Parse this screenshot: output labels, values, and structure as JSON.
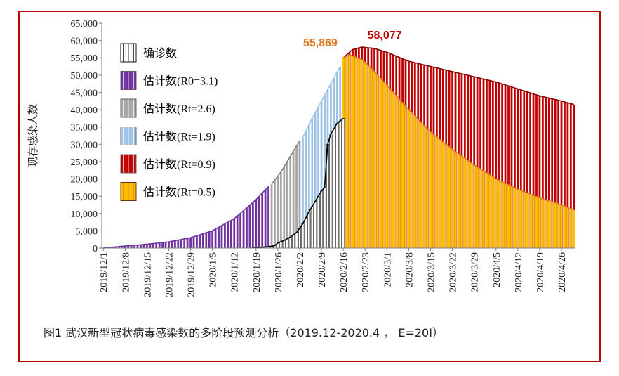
{
  "figure": {
    "caption": "图1  武汉新型冠状病毒感染数的多阶段预测分析（2019.12-2020.4 ，  E=20I）"
  },
  "chart_data": {
    "type": "bar",
    "ylabel": "现存感染人数",
    "ylim": [
      0,
      65000
    ],
    "y_ticks": [
      "0",
      "5,000",
      "10,000",
      "15,000",
      "20,000",
      "25,000",
      "30,000",
      "35,000",
      "40,000",
      "45,000",
      "50,000",
      "55,000",
      "60,000",
      "65,000"
    ],
    "x_start": "2019-12-01",
    "x_end": "2020-04-30",
    "x_tick_labels": [
      "2019/12/1",
      "2019/12/8",
      "2019/12/15",
      "2019/12/22",
      "2019/12/29",
      "2020/1/5",
      "2020/1/12",
      "2020/1/19",
      "2020/1/26",
      "2020/2/2",
      "2020/2/9",
      "2020/2/16",
      "2020/2/23",
      "2020/3/1",
      "2020/3/8",
      "2020/3/15",
      "2020/3/22",
      "2020/3/29",
      "2020/4/5",
      "2020/4/12",
      "2020/4/19",
      "2020/4/26"
    ],
    "annotations": [
      {
        "text": "55,869",
        "date": "2020-02-16",
        "value": 55869,
        "color": "#e07b28"
      },
      {
        "text": "58,077",
        "date": "2020-02-22",
        "value": 58077,
        "color": "#c00000"
      }
    ],
    "series": [
      {
        "name": "估计数(Rt=0.9)",
        "fill": "#c00000",
        "stroke": "#ffffff",
        "line": "#8b0000",
        "points": [
          [
            "2020-02-16",
            55000
          ],
          [
            "2020-02-19",
            57400
          ],
          [
            "2020-02-22",
            58077
          ],
          [
            "2020-02-26",
            57700
          ],
          [
            "2020-03-01",
            56600
          ],
          [
            "2020-03-08",
            54000
          ],
          [
            "2020-03-15",
            52500
          ],
          [
            "2020-03-22",
            51000
          ],
          [
            "2020-03-29",
            49500
          ],
          [
            "2020-04-05",
            48000
          ],
          [
            "2020-04-12",
            46000
          ],
          [
            "2020-04-19",
            44000
          ],
          [
            "2020-04-26",
            42500
          ],
          [
            "2020-04-30",
            41500
          ]
        ]
      },
      {
        "name": "估计数(Rt=0.5)",
        "fill": "#ffc000",
        "stroke": "#e07b28",
        "line": "#e07b28",
        "points": [
          [
            "2020-02-16",
            55000
          ],
          [
            "2020-02-18",
            55869
          ],
          [
            "2020-02-22",
            54500
          ],
          [
            "2020-02-26",
            51000
          ],
          [
            "2020-03-01",
            47000
          ],
          [
            "2020-03-08",
            40000
          ],
          [
            "2020-03-15",
            33500
          ],
          [
            "2020-03-22",
            28500
          ],
          [
            "2020-03-29",
            24000
          ],
          [
            "2020-04-05",
            20000
          ],
          [
            "2020-04-12",
            17000
          ],
          [
            "2020-04-19",
            14500
          ],
          [
            "2020-04-26",
            12500
          ],
          [
            "2020-04-30",
            11000
          ]
        ]
      },
      {
        "name": "估计数(R0=3.1)",
        "fill": "#7030a0",
        "stroke": "#ffffff",
        "line": "#7030a0",
        "points": [
          [
            "2019-12-01",
            0
          ],
          [
            "2019-12-08",
            600
          ],
          [
            "2019-12-15",
            1100
          ],
          [
            "2019-12-22",
            1800
          ],
          [
            "2019-12-29",
            3000
          ],
          [
            "2020-01-05",
            5000
          ],
          [
            "2020-01-12",
            8500
          ],
          [
            "2020-01-19",
            14000
          ],
          [
            "2020-01-23",
            17800
          ]
        ]
      },
      {
        "name": "估计数(Rt=2.6)",
        "fill": "#a6a6a6",
        "stroke": "#ffffff",
        "line": "#808080",
        "points": [
          [
            "2020-01-24",
            18500
          ],
          [
            "2020-01-27",
            22000
          ],
          [
            "2020-01-30",
            26500
          ],
          [
            "2020-02-02",
            31000
          ]
        ]
      },
      {
        "name": "估计数(Rt=1.9)",
        "fill": "#9dc3e6",
        "stroke": "#ffffff",
        "line": "#9dc3e6",
        "points": [
          [
            "2020-02-03",
            32000
          ],
          [
            "2020-02-06",
            37500
          ],
          [
            "2020-02-09",
            42500
          ],
          [
            "2020-02-12",
            47500
          ],
          [
            "2020-02-15",
            52500
          ]
        ]
      },
      {
        "name": "确诊数",
        "fill": "#ffffff",
        "stroke": "#000000",
        "line": "#000000",
        "points": [
          [
            "2020-01-18",
            100
          ],
          [
            "2020-01-23",
            400
          ],
          [
            "2020-01-25",
            700
          ],
          [
            "2020-01-26",
            1500
          ],
          [
            "2020-01-28",
            2200
          ],
          [
            "2020-01-30",
            3200
          ],
          [
            "2020-02-01",
            4500
          ],
          [
            "2020-02-03",
            7000
          ],
          [
            "2020-02-05",
            10500
          ],
          [
            "2020-02-07",
            13500
          ],
          [
            "2020-02-09",
            16500
          ],
          [
            "2020-02-10",
            17500
          ],
          [
            "2020-02-11",
            30000
          ],
          [
            "2020-02-12",
            33000
          ],
          [
            "2020-02-14",
            36000
          ],
          [
            "2020-02-16",
            37500
          ]
        ]
      }
    ],
    "legend": {
      "position": "top-left",
      "items": [
        {
          "label": "确诊数",
          "swatch": "#ffffff",
          "stroke": "#000000"
        },
        {
          "label": "估计数(R0=3.1)",
          "swatch": "#7030a0",
          "stroke": "#ffffff"
        },
        {
          "label": "估计数(Rt=2.6)",
          "swatch": "#a6a6a6",
          "stroke": "#ffffff"
        },
        {
          "label": "估计数(Rt=1.9)",
          "swatch": "#9dc3e6",
          "stroke": "#ffffff"
        },
        {
          "label": "估计数(Rt=0.9)",
          "swatch": "#c00000",
          "stroke": "#ffffff"
        },
        {
          "label": "估计数(Rt=0.5)",
          "swatch": "#ffc000",
          "stroke": "#e07b28"
        }
      ]
    }
  }
}
